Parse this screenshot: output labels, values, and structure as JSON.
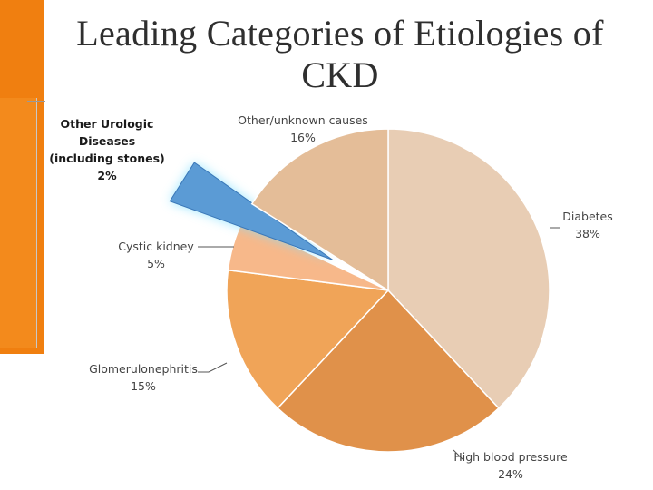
{
  "title": "Leading Categories of Etiologies of CKD",
  "chart_data": {
    "type": "pie",
    "title": "Leading Categories of Etiologies of CKD",
    "start_angle_deg": 0,
    "direction": "clockwise",
    "slices": [
      {
        "label": "Diabetes",
        "value_label": "38%",
        "value": 38,
        "color": "#e8cdb4"
      },
      {
        "label": "High blood pressure",
        "value_label": "24%",
        "value": 24,
        "color": "#e0914a"
      },
      {
        "label": "Glomerulonephritis",
        "value_label": "15%",
        "value": 15,
        "color": "#f0a458"
      },
      {
        "label": "Cystic kidney",
        "value_label": "5%",
        "value": 5,
        "color": "#f7b88a"
      },
      {
        "label": "Other Urologic Diseases (including stones)",
        "value_label": "2%",
        "value": 2,
        "color": "#5b9bd5",
        "exploded": true,
        "highlighted": true
      },
      {
        "label": "Other/unknown causes",
        "value_label": "16%",
        "value": 16,
        "color": "#e4bd98"
      }
    ],
    "labels": [
      {
        "lines": [
          "Diabetes",
          "38%"
        ],
        "style": "normal"
      },
      {
        "lines": [
          "High blood pressure",
          "24%"
        ],
        "style": "normal"
      },
      {
        "lines": [
          "Glomerulonephritis",
          "15%"
        ],
        "style": "normal"
      },
      {
        "lines": [
          "Cystic kidney",
          "5%"
        ],
        "style": "normal"
      },
      {
        "lines": [
          "Other Urologic",
          "Diseases",
          "(including stones)",
          "2%"
        ],
        "style": "bold"
      },
      {
        "lines": [
          "Other/unknown causes",
          "16%"
        ],
        "style": "normal"
      }
    ]
  }
}
